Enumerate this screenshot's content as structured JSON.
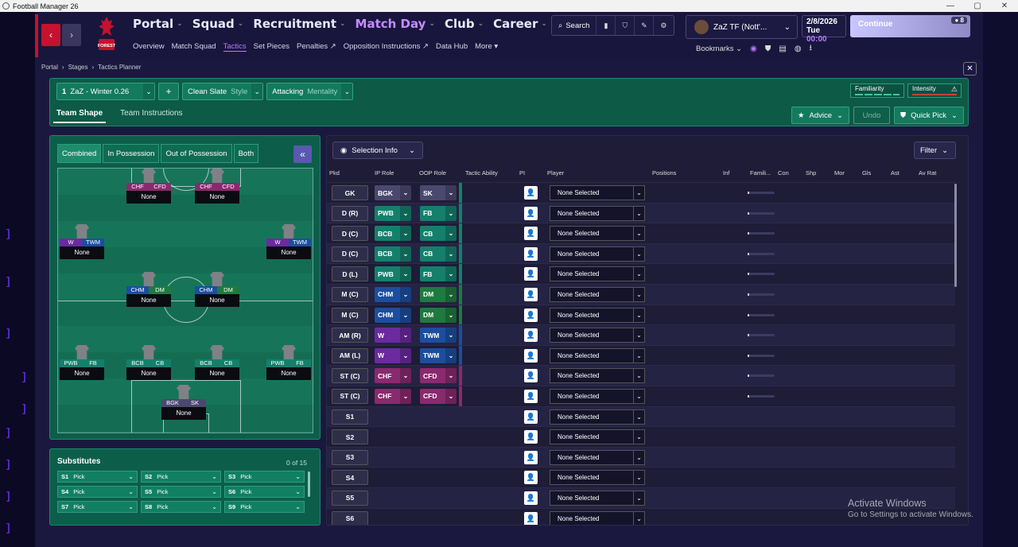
{
  "window": {
    "title": "Football Manager 26",
    "controls": [
      "—",
      "▢",
      "✕"
    ]
  },
  "nav": {
    "main": [
      {
        "label": "Portal",
        "active": false
      },
      {
        "label": "Squad",
        "active": false
      },
      {
        "label": "Recruitment",
        "active": false
      },
      {
        "label": "Match Day",
        "active": true
      },
      {
        "label": "Club",
        "active": false
      },
      {
        "label": "Career",
        "active": false
      }
    ],
    "sub": [
      "Overview",
      "Match Squad",
      "Tactics",
      "Set Pieces",
      "Penalties ↗",
      "Opposition Instructions ↗",
      "Data Hub",
      "More ▾"
    ],
    "sub_active": "Tactics",
    "search_label": "Search",
    "crest_text": "FOREST",
    "manager_name": "ZaZ TF (Nott'...",
    "date": "2/8/2026",
    "day": "Tue",
    "time": "00:00",
    "continue_label": "Continue",
    "continue_badge": "8",
    "bookmarks_label": "Bookmarks"
  },
  "breadcrumb": [
    "Portal",
    "Stages",
    "Tactics Planner"
  ],
  "planner": {
    "tactic_num": "1",
    "tactic_name": "ZaZ - Winter 0.26",
    "add_label": "+",
    "style_value": "Clean Slate",
    "style_label": "Style",
    "mentality_value": "Attacking",
    "mentality_label": "Mentality",
    "familiarity_label": "Familiarity",
    "intensity_label": "Intensity",
    "tabs": [
      "Team Shape",
      "Team Instructions"
    ],
    "advice_label": "Advice",
    "undo_label": "Undo",
    "quickpick_label": "Quick Pick"
  },
  "phases": [
    "Combined",
    "In Possession",
    "Out of Possession",
    "Both"
  ],
  "pitch_positions": [
    {
      "r1": "CHF",
      "r2": "CFD",
      "c1": "#8a2a6e",
      "c2": "#8a2a6e",
      "name": "None"
    },
    {
      "r1": "CHF",
      "r2": "CFD",
      "c1": "#8a2a6e",
      "c2": "#8a2a6e",
      "name": "None"
    },
    {
      "r1": "W",
      "r2": "TWM",
      "c1": "#6b2aa0",
      "c2": "#1c4ea0",
      "name": "None"
    },
    {
      "r1": "W",
      "r2": "TWM",
      "c1": "#6b2aa0",
      "c2": "#1c4ea0",
      "name": "None"
    },
    {
      "r1": "CHM",
      "r2": "DM",
      "c1": "#1c4ea0",
      "c2": "#1f7a3f",
      "name": "None"
    },
    {
      "r1": "CHM",
      "r2": "DM",
      "c1": "#1c4ea0",
      "c2": "#1f7a3f",
      "name": "None"
    },
    {
      "r1": "PWB",
      "r2": "FB",
      "c1": "#14806c",
      "c2": "#14806c",
      "name": "None"
    },
    {
      "r1": "BCB",
      "r2": "CB",
      "c1": "#14806c",
      "c2": "#14806c",
      "name": "None"
    },
    {
      "r1": "BCB",
      "r2": "CB",
      "c1": "#14806c",
      "c2": "#14806c",
      "name": "None"
    },
    {
      "r1": "PWB",
      "r2": "FB",
      "c1": "#14806c",
      "c2": "#14806c",
      "name": "None"
    },
    {
      "r1": "BGK",
      "r2": "SK",
      "c1": "#4b4870",
      "c2": "#4b4870",
      "name": "None"
    }
  ],
  "subs": {
    "title": "Substitutes",
    "count": "0 of 15",
    "slots": [
      {
        "n": "S1",
        "v": "Pick"
      },
      {
        "n": "S2",
        "v": "Pick"
      },
      {
        "n": "S3",
        "v": "Pick"
      },
      {
        "n": "S4",
        "v": "Pick"
      },
      {
        "n": "S5",
        "v": "Pick"
      },
      {
        "n": "S6",
        "v": "Pick"
      },
      {
        "n": "S7",
        "v": "Pick"
      },
      {
        "n": "S8",
        "v": "Pick"
      },
      {
        "n": "S9",
        "v": "Pick"
      }
    ]
  },
  "table": {
    "selection_label": "Selection Info",
    "filter_label": "Filter",
    "headers": [
      "Pkd",
      "IP Role",
      "OOP Role",
      "Tactic Ability",
      "PI",
      "Player",
      "Positions",
      "Inf",
      "Famili...",
      "Con",
      "Shp",
      "Mor",
      "Gls",
      "Ast",
      "Av Rat"
    ],
    "rows": [
      {
        "pkd": "GK",
        "ip": "BGK",
        "oop": "SK",
        "ipc": "#4b4870",
        "oopc": "#4b4870",
        "band": "#14806c",
        "player": "None Selected",
        "fam": true
      },
      {
        "pkd": "D (R)",
        "ip": "PWB",
        "oop": "FB",
        "ipc": "#14806c",
        "oopc": "#14806c",
        "band": "#14806c",
        "player": "None Selected",
        "fam": true
      },
      {
        "pkd": "D (C)",
        "ip": "BCB",
        "oop": "CB",
        "ipc": "#14806c",
        "oopc": "#14806c",
        "band": "#14806c",
        "player": "None Selected",
        "fam": true
      },
      {
        "pkd": "D (C)",
        "ip": "BCB",
        "oop": "CB",
        "ipc": "#14806c",
        "oopc": "#14806c",
        "band": "#14806c",
        "player": "None Selected",
        "fam": true
      },
      {
        "pkd": "D (L)",
        "ip": "PWB",
        "oop": "FB",
        "ipc": "#14806c",
        "oopc": "#14806c",
        "band": "#14806c",
        "player": "None Selected",
        "fam": true
      },
      {
        "pkd": "M (C)",
        "ip": "CHM",
        "oop": "DM",
        "ipc": "#1c4ea0",
        "oopc": "#1f7a3f",
        "band": "#1f7a3f",
        "player": "None Selected",
        "fam": true
      },
      {
        "pkd": "M (C)",
        "ip": "CHM",
        "oop": "DM",
        "ipc": "#1c4ea0",
        "oopc": "#1f7a3f",
        "band": "#1f7a3f",
        "player": "None Selected",
        "fam": true
      },
      {
        "pkd": "AM (R)",
        "ip": "W",
        "oop": "TWM",
        "ipc": "#6b2aa0",
        "oopc": "#1c4ea0",
        "band": "#1c4ea0",
        "player": "None Selected",
        "fam": true
      },
      {
        "pkd": "AM (L)",
        "ip": "W",
        "oop": "TWM",
        "ipc": "#6b2aa0",
        "oopc": "#1c4ea0",
        "band": "#1c4ea0",
        "player": "None Selected",
        "fam": true
      },
      {
        "pkd": "ST (C)",
        "ip": "CHF",
        "oop": "CFD",
        "ipc": "#8a2a6e",
        "oopc": "#8a2a6e",
        "band": "#8a2a6e",
        "player": "None Selected",
        "fam": true
      },
      {
        "pkd": "ST (C)",
        "ip": "CHF",
        "oop": "CFD",
        "ipc": "#8a2a6e",
        "oopc": "#8a2a6e",
        "band": "#8a2a6e",
        "player": "None Selected",
        "fam": true
      },
      {
        "pkd": "S1",
        "ip": "",
        "oop": "",
        "player": "None Selected",
        "fam": false
      },
      {
        "pkd": "S2",
        "ip": "",
        "oop": "",
        "player": "None Selected",
        "fam": false
      },
      {
        "pkd": "S3",
        "ip": "",
        "oop": "",
        "player": "None Selected",
        "fam": false
      },
      {
        "pkd": "S4",
        "ip": "",
        "oop": "",
        "player": "None Selected",
        "fam": false
      },
      {
        "pkd": "S5",
        "ip": "",
        "oop": "",
        "player": "None Selected",
        "fam": false
      },
      {
        "pkd": "S6",
        "ip": "",
        "oop": "",
        "player": "None Selected",
        "fam": false
      }
    ]
  },
  "watermark": {
    "line1": "Activate Windows",
    "line2": "Go to Settings to activate Windows."
  }
}
